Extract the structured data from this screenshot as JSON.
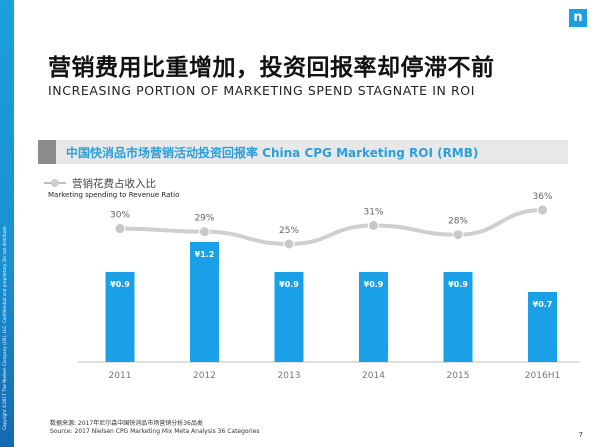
{
  "slide": {
    "title_cn": "营销费用比重增加，投资回报率却停滞不前",
    "title_en": "INCREASING PORTION OF MARKETING SPEND STAGNATE IN ROI",
    "logo_letter": "n",
    "side_text": "Copyright ©2017 The Nielsen Company (US), LLC. Confidential and proprietary. Do not distribute.",
    "source_cn": "数据来源: 2017年尼尔森中国快消品市场营销分析36品类",
    "source_en": "Source: 2017 Nielsen CPG Marketing Mix Meta Analysis 36 Categories",
    "page_number": "7",
    "colors": {
      "accent": "#2a9fdb",
      "bar": "#1aa0e6",
      "line": "#cfcfcf"
    }
  },
  "chart_data": {
    "type": "bar",
    "title": "中国快消品市场营销活动投资回报率 China CPG Marketing ROI (RMB)",
    "categories": [
      "2011",
      "2012",
      "2013",
      "2014",
      "2015",
      "2016H1"
    ],
    "series": [
      {
        "kind": "bar",
        "values": [
          0.9,
          1.2,
          0.9,
          0.9,
          0.9,
          0.7
        ],
        "labels": [
          "¥0.9",
          "¥1.2",
          "¥0.9",
          "¥0.9",
          "¥0.9",
          "¥0.7"
        ]
      },
      {
        "kind": "line",
        "name": "营销花费占收入比",
        "name_en": "Marketing spending to Revenue Ratio",
        "values": [
          30,
          29,
          25,
          31,
          28,
          36
        ],
        "labels": [
          "30%",
          "29%",
          "25%",
          "31%",
          "28%",
          "36%"
        ]
      }
    ],
    "legend": "top-left"
  }
}
